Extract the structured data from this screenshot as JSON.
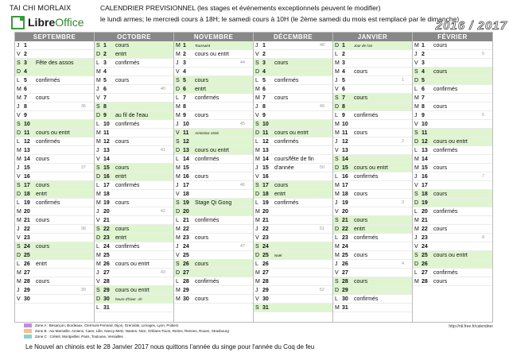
{
  "header": {
    "club": "TAI CHI MORLAIX",
    "logo": {
      "libre": "Libre",
      "office": "Office"
    },
    "line1": "CALENDRIER PREVISIONNEL (les stages et événements exceptionnels peuvent le modifier)",
    "line2": "le lundi armes; le mercredi cours à 18H; le samedi cours à 10H (le 2ème samedi du mois est remplacé par le dimanche)",
    "years": "2016 / 2017"
  },
  "zones": [
    {
      "color": "#c58ae0",
      "label": "Zone A : Besançon, Bordeaux, Clermont-Ferrand, Dijon, Grenoble, Limoges, Lyon, Poitiers"
    },
    {
      "color": "#f5c08a",
      "label": "Zone B : Aix-Marseille, Amiens, Caen, Lille, Nancy-Metz, Nantes, Nice, Orléans-Tours, Reims, Rennes, Rouen, Strasbourg"
    },
    {
      "color": "#8ad0d6",
      "label": "Zone C : Créteil, Montpellier, Paris, Toulouse, Versailles"
    }
  ],
  "url": "http://nti.free.fr/calendrier",
  "note": "Le Nouvel an chinois est le 28 Janvier 2017 nous quittons l'année du singe pour l'année du Coq de feu",
  "months": [
    {
      "name": "SEPTEMBRE",
      "days": [
        {
          "l": "J",
          "n": "1",
          "e": ""
        },
        {
          "l": "V",
          "n": "2",
          "e": ""
        },
        {
          "l": "S",
          "n": "3",
          "e": "Fête des assos",
          "w": 1
        },
        {
          "l": "D",
          "n": "4",
          "e": "",
          "w": 1
        },
        {
          "l": "L",
          "n": "5",
          "e": "confirmés"
        },
        {
          "l": "M",
          "n": "6",
          "e": ""
        },
        {
          "l": "M",
          "n": "7",
          "e": "cours"
        },
        {
          "l": "J",
          "n": "8",
          "e": "",
          "k": "36"
        },
        {
          "l": "V",
          "n": "9",
          "e": ""
        },
        {
          "l": "S",
          "n": "10",
          "e": "",
          "w": 1
        },
        {
          "l": "D",
          "n": "11",
          "e": "cours ou entrt",
          "w": 1
        },
        {
          "l": "L",
          "n": "12",
          "e": "confirmés"
        },
        {
          "l": "M",
          "n": "13",
          "e": ""
        },
        {
          "l": "M",
          "n": "14",
          "e": "cours"
        },
        {
          "l": "J",
          "n": "15",
          "e": "",
          "k": "37"
        },
        {
          "l": "V",
          "n": "16",
          "e": ""
        },
        {
          "l": "S",
          "n": "17",
          "e": "cours",
          "w": 1
        },
        {
          "l": "D",
          "n": "18",
          "e": "entrt",
          "w": 1
        },
        {
          "l": "L",
          "n": "19",
          "e": "confirmés"
        },
        {
          "l": "M",
          "n": "20",
          "e": ""
        },
        {
          "l": "M",
          "n": "21",
          "e": "cours"
        },
        {
          "l": "J",
          "n": "22",
          "e": "",
          "k": "38"
        },
        {
          "l": "V",
          "n": "23",
          "e": ""
        },
        {
          "l": "S",
          "n": "24",
          "e": "cours",
          "w": 1
        },
        {
          "l": "D",
          "n": "25",
          "e": "",
          "w": 1
        },
        {
          "l": "L",
          "n": "26",
          "e": "entrt"
        },
        {
          "l": "M",
          "n": "27",
          "e": ""
        },
        {
          "l": "M",
          "n": "28",
          "e": "cours"
        },
        {
          "l": "J",
          "n": "29",
          "e": "",
          "k": "39"
        },
        {
          "l": "V",
          "n": "30",
          "e": ""
        }
      ]
    },
    {
      "name": "OCTOBRE",
      "days": [
        {
          "l": "S",
          "n": "1",
          "e": "cours",
          "w": 1
        },
        {
          "l": "D",
          "n": "2",
          "e": "entrt",
          "w": 1
        },
        {
          "l": "L",
          "n": "3",
          "e": "confirmés"
        },
        {
          "l": "M",
          "n": "4",
          "e": ""
        },
        {
          "l": "M",
          "n": "5",
          "e": "cours"
        },
        {
          "l": "J",
          "n": "6",
          "e": "",
          "k": "40"
        },
        {
          "l": "V",
          "n": "7",
          "e": ""
        },
        {
          "l": "S",
          "n": "8",
          "e": "",
          "w": 1
        },
        {
          "l": "D",
          "n": "9",
          "e": "au fil de l'eau",
          "w": 1
        },
        {
          "l": "L",
          "n": "10",
          "e": "confirmés"
        },
        {
          "l": "M",
          "n": "11",
          "e": ""
        },
        {
          "l": "M",
          "n": "12",
          "e": "cours"
        },
        {
          "l": "J",
          "n": "13",
          "e": "",
          "k": "41"
        },
        {
          "l": "V",
          "n": "14",
          "e": ""
        },
        {
          "l": "S",
          "n": "15",
          "e": "cours",
          "w": 1
        },
        {
          "l": "D",
          "n": "16",
          "e": "entrt",
          "w": 1
        },
        {
          "l": "L",
          "n": "17",
          "e": "confirmés"
        },
        {
          "l": "M",
          "n": "18",
          "e": ""
        },
        {
          "l": "M",
          "n": "19",
          "e": "cours"
        },
        {
          "l": "J",
          "n": "20",
          "e": "",
          "k": "42"
        },
        {
          "l": "V",
          "n": "21",
          "e": ""
        },
        {
          "l": "S",
          "n": "22",
          "e": "cours",
          "w": 1
        },
        {
          "l": "D",
          "n": "23",
          "e": "entrt",
          "w": 1
        },
        {
          "l": "L",
          "n": "24",
          "e": "confirmés"
        },
        {
          "l": "M",
          "n": "25",
          "e": ""
        },
        {
          "l": "M",
          "n": "26",
          "e": "cours ou entrt"
        },
        {
          "l": "J",
          "n": "27",
          "e": "",
          "k": "43"
        },
        {
          "l": "V",
          "n": "28",
          "e": ""
        },
        {
          "l": "S",
          "n": "29",
          "e": "cours ou entrt",
          "w": 1
        },
        {
          "l": "D",
          "n": "30",
          "e": "heure d'hiver -1h",
          "w": 1,
          "s": 1
        },
        {
          "l": "L",
          "n": "31",
          "e": ""
        }
      ]
    },
    {
      "name": "NOVEMBRE",
      "days": [
        {
          "l": "M",
          "n": "1",
          "e": "Toussaint",
          "w": 1,
          "s": 1
        },
        {
          "l": "M",
          "n": "2",
          "e": "cours ou entrt"
        },
        {
          "l": "J",
          "n": "3",
          "e": "",
          "k": "44"
        },
        {
          "l": "V",
          "n": "4",
          "e": ""
        },
        {
          "l": "S",
          "n": "5",
          "e": "cours",
          "w": 1
        },
        {
          "l": "D",
          "n": "6",
          "e": "entrt",
          "w": 1
        },
        {
          "l": "L",
          "n": "7",
          "e": "confirmés"
        },
        {
          "l": "M",
          "n": "8",
          "e": ""
        },
        {
          "l": "M",
          "n": "9",
          "e": "cours"
        },
        {
          "l": "J",
          "n": "10",
          "e": "",
          "k": "45"
        },
        {
          "l": "V",
          "n": "11",
          "e": "Armistice 1918",
          "w": 1,
          "s": 1
        },
        {
          "l": "S",
          "n": "12",
          "e": "",
          "w": 1
        },
        {
          "l": "D",
          "n": "13",
          "e": "cours ou entrt",
          "w": 1
        },
        {
          "l": "L",
          "n": "14",
          "e": "confirmés"
        },
        {
          "l": "M",
          "n": "15",
          "e": ""
        },
        {
          "l": "M",
          "n": "16",
          "e": "cours"
        },
        {
          "l": "J",
          "n": "17",
          "e": "",
          "k": "46"
        },
        {
          "l": "V",
          "n": "18",
          "e": ""
        },
        {
          "l": "S",
          "n": "19",
          "e": "Stage Qi Gong",
          "w": 1
        },
        {
          "l": "D",
          "n": "20",
          "e": "",
          "w": 1
        },
        {
          "l": "L",
          "n": "21",
          "e": "confirmés"
        },
        {
          "l": "M",
          "n": "22",
          "e": ""
        },
        {
          "l": "M",
          "n": "23",
          "e": "cours"
        },
        {
          "l": "J",
          "n": "24",
          "e": "",
          "k": "47"
        },
        {
          "l": "V",
          "n": "25",
          "e": ""
        },
        {
          "l": "S",
          "n": "26",
          "e": "cours",
          "w": 1
        },
        {
          "l": "D",
          "n": "27",
          "e": "",
          "w": 1
        },
        {
          "l": "L",
          "n": "28",
          "e": "confirmés"
        },
        {
          "l": "M",
          "n": "29",
          "e": ""
        },
        {
          "l": "M",
          "n": "30",
          "e": "cours"
        }
      ]
    },
    {
      "name": "DÉCEMBRE",
      "days": [
        {
          "l": "J",
          "n": "1",
          "e": "",
          "k": "48"
        },
        {
          "l": "V",
          "n": "2",
          "e": ""
        },
        {
          "l": "S",
          "n": "3",
          "e": "cours",
          "w": 1
        },
        {
          "l": "D",
          "n": "4",
          "e": "",
          "w": 1
        },
        {
          "l": "L",
          "n": "5",
          "e": "confirmés"
        },
        {
          "l": "M",
          "n": "6",
          "e": ""
        },
        {
          "l": "M",
          "n": "7",
          "e": "cours"
        },
        {
          "l": "J",
          "n": "8",
          "e": "",
          "k": "49"
        },
        {
          "l": "V",
          "n": "9",
          "e": ""
        },
        {
          "l": "S",
          "n": "10",
          "e": "",
          "w": 1
        },
        {
          "l": "D",
          "n": "11",
          "e": "cours ou entrt",
          "w": 1
        },
        {
          "l": "L",
          "n": "12",
          "e": "confirmés"
        },
        {
          "l": "M",
          "n": "13",
          "e": ""
        },
        {
          "l": "M",
          "n": "14",
          "e": "cours/fête de fin"
        },
        {
          "l": "J",
          "n": "15",
          "e": "d'année",
          "k": "50"
        },
        {
          "l": "V",
          "n": "16",
          "e": ""
        },
        {
          "l": "S",
          "n": "17",
          "e": "cours",
          "w": 1
        },
        {
          "l": "D",
          "n": "18",
          "e": "entrt",
          "w": 1
        },
        {
          "l": "L",
          "n": "19",
          "e": "confirmés"
        },
        {
          "l": "M",
          "n": "20",
          "e": ""
        },
        {
          "l": "M",
          "n": "21",
          "e": ""
        },
        {
          "l": "J",
          "n": "22",
          "e": "",
          "k": "51"
        },
        {
          "l": "V",
          "n": "23",
          "e": ""
        },
        {
          "l": "S",
          "n": "24",
          "e": "",
          "w": 1
        },
        {
          "l": "D",
          "n": "25",
          "e": "Noël",
          "w": 1,
          "s": 1
        },
        {
          "l": "L",
          "n": "26",
          "e": ""
        },
        {
          "l": "M",
          "n": "27",
          "e": ""
        },
        {
          "l": "M",
          "n": "28",
          "e": ""
        },
        {
          "l": "J",
          "n": "29",
          "e": "",
          "k": "52"
        },
        {
          "l": "V",
          "n": "30",
          "e": ""
        },
        {
          "l": "S",
          "n": "31",
          "e": "",
          "w": 1
        }
      ]
    },
    {
      "name": "JANVIER",
      "days": [
        {
          "l": "D",
          "n": "1",
          "e": "Jour de l'an",
          "w": 1,
          "s": 1
        },
        {
          "l": "L",
          "n": "2",
          "e": ""
        },
        {
          "l": "M",
          "n": "3",
          "e": ""
        },
        {
          "l": "M",
          "n": "4",
          "e": "cours"
        },
        {
          "l": "J",
          "n": "5",
          "e": "",
          "k": "1"
        },
        {
          "l": "V",
          "n": "6",
          "e": ""
        },
        {
          "l": "S",
          "n": "7",
          "e": "cours",
          "w": 1
        },
        {
          "l": "D",
          "n": "8",
          "e": "",
          "w": 1
        },
        {
          "l": "L",
          "n": "9",
          "e": "confirmés"
        },
        {
          "l": "M",
          "n": "10",
          "e": ""
        },
        {
          "l": "M",
          "n": "11",
          "e": "cours"
        },
        {
          "l": "J",
          "n": "12",
          "e": "",
          "k": "2"
        },
        {
          "l": "V",
          "n": "13",
          "e": ""
        },
        {
          "l": "S",
          "n": "14",
          "e": "",
          "w": 1
        },
        {
          "l": "D",
          "n": "15",
          "e": "cours ou entrt",
          "w": 1
        },
        {
          "l": "L",
          "n": "16",
          "e": "confirmés"
        },
        {
          "l": "M",
          "n": "17",
          "e": ""
        },
        {
          "l": "M",
          "n": "18",
          "e": "cours"
        },
        {
          "l": "J",
          "n": "19",
          "e": "",
          "k": "3"
        },
        {
          "l": "V",
          "n": "20",
          "e": ""
        },
        {
          "l": "S",
          "n": "21",
          "e": "cours",
          "w": 1
        },
        {
          "l": "D",
          "n": "22",
          "e": "entrt",
          "w": 1
        },
        {
          "l": "L",
          "n": "23",
          "e": "confirmés"
        },
        {
          "l": "M",
          "n": "24",
          "e": ""
        },
        {
          "l": "M",
          "n": "25",
          "e": "cours"
        },
        {
          "l": "J",
          "n": "26",
          "e": "",
          "k": "4"
        },
        {
          "l": "V",
          "n": "27",
          "e": ""
        },
        {
          "l": "S",
          "n": "28",
          "e": "cours",
          "w": 1
        },
        {
          "l": "D",
          "n": "29",
          "e": "",
          "w": 1
        },
        {
          "l": "L",
          "n": "30",
          "e": "confirmés"
        },
        {
          "l": "M",
          "n": "31",
          "e": ""
        }
      ]
    },
    {
      "name": "FÉVRIER",
      "days": [
        {
          "l": "M",
          "n": "1",
          "e": "cours"
        },
        {
          "l": "J",
          "n": "2",
          "e": "",
          "k": "5"
        },
        {
          "l": "V",
          "n": "3",
          "e": ""
        },
        {
          "l": "S",
          "n": "4",
          "e": "cours",
          "w": 1
        },
        {
          "l": "D",
          "n": "5",
          "e": "",
          "w": 1
        },
        {
          "l": "L",
          "n": "6",
          "e": "confirmés"
        },
        {
          "l": "M",
          "n": "7",
          "e": ""
        },
        {
          "l": "M",
          "n": "8",
          "e": "cours"
        },
        {
          "l": "J",
          "n": "9",
          "e": "",
          "k": "6"
        },
        {
          "l": "V",
          "n": "10",
          "e": ""
        },
        {
          "l": "S",
          "n": "11",
          "e": "",
          "w": 1
        },
        {
          "l": "D",
          "n": "12",
          "e": "cours ou entrt",
          "w": 1
        },
        {
          "l": "L",
          "n": "13",
          "e": "confirmés"
        },
        {
          "l": "M",
          "n": "14",
          "e": ""
        },
        {
          "l": "M",
          "n": "15",
          "e": "cours"
        },
        {
          "l": "J",
          "n": "16",
          "e": "",
          "k": "7"
        },
        {
          "l": "V",
          "n": "17",
          "e": ""
        },
        {
          "l": "S",
          "n": "18",
          "e": "cours",
          "w": 1
        },
        {
          "l": "D",
          "n": "19",
          "e": "",
          "w": 1
        },
        {
          "l": "L",
          "n": "20",
          "e": "confirmés"
        },
        {
          "l": "M",
          "n": "21",
          "e": ""
        },
        {
          "l": "M",
          "n": "22",
          "e": "cours"
        },
        {
          "l": "J",
          "n": "23",
          "e": "",
          "k": "8"
        },
        {
          "l": "V",
          "n": "24",
          "e": ""
        },
        {
          "l": "S",
          "n": "25",
          "e": "cours ou entrt",
          "w": 1
        },
        {
          "l": "D",
          "n": "26",
          "e": "",
          "w": 1
        },
        {
          "l": "L",
          "n": "27",
          "e": "confirmés"
        },
        {
          "l": "M",
          "n": "28",
          "e": "cours"
        }
      ]
    }
  ]
}
